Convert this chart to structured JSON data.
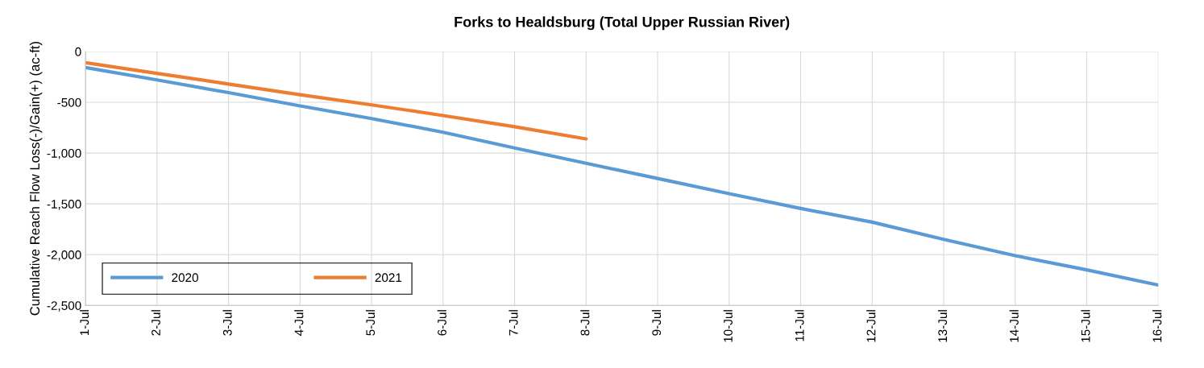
{
  "chart_data": {
    "type": "line",
    "title": "Forks to Healdsburg (Total Upper Russian River)",
    "ylabel": "Cumulative Reach Flow Loss(-)/Gain(+) (ac-ft)",
    "categories": [
      "1-Jul",
      "2-Jul",
      "3-Jul",
      "4-Jul",
      "5-Jul",
      "6-Jul",
      "7-Jul",
      "8-Jul",
      "9-Jul",
      "10-Jul",
      "11-Jul",
      "12-Jul",
      "13-Jul",
      "14-Jul",
      "15-Jul",
      "16-Jul"
    ],
    "series": [
      {
        "name": "2020",
        "color": "#5b9bd5",
        "values": [
          -158,
          -280,
          -405,
          -535,
          -660,
          -795,
          -950,
          -1100,
          -1250,
          -1400,
          -1545,
          -1680,
          -1850,
          -2010,
          -2150,
          -2300
        ]
      },
      {
        "name": "2021",
        "color": "#ed7d31",
        "values": [
          -110,
          -215,
          -320,
          -425,
          -525,
          -630,
          -740,
          -860,
          null,
          null,
          null,
          null,
          null,
          null,
          null,
          null
        ]
      }
    ],
    "ylim": [
      -2500,
      0
    ],
    "yticks": [
      {
        "value": -2500,
        "label": "-2,500"
      },
      {
        "value": -2000,
        "label": "-2,000"
      },
      {
        "value": -1500,
        "label": "-1,500"
      },
      {
        "value": -1000,
        "label": "-1,000"
      },
      {
        "value": -500,
        "label": "-500"
      },
      0
    ],
    "grid": true,
    "legend": "bottom left",
    "marker": "none",
    "line_style": "solid"
  }
}
